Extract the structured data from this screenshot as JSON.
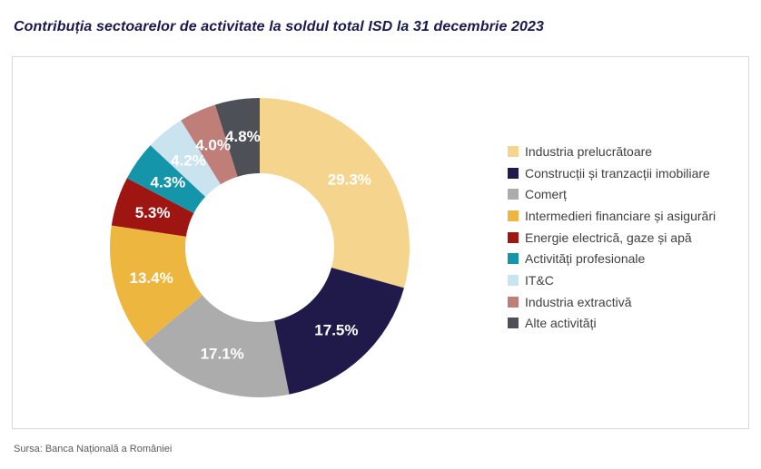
{
  "title": "Contribuția sectoarelor de activitate la soldul total ISD la 31 decembrie 2023",
  "source": "Sursa: Banca Națională a României",
  "chart_data": {
    "type": "pie",
    "donut": true,
    "inner_radius_ratio": 0.5,
    "start_angle": 0,
    "direction": "clockwise",
    "title": "Contribuția sectoarelor de activitate la soldul total ISD la 31 decembrie 2023",
    "legend_position": "right",
    "label_color": "#FFFFFF",
    "categories": [
      "Industria prelucrătoare",
      "Construcții și tranzacții imobiliare",
      "Comerț",
      "Intermedieri financiare și asigurări",
      "Energie electrică, gaze și apă",
      "Activități profesionale",
      "IT&C",
      "Industria extractivă",
      "Alte activități"
    ],
    "values": [
      29.3,
      17.5,
      17.1,
      13.4,
      5.3,
      4.3,
      4.2,
      4.0,
      4.8
    ],
    "labels": [
      "29.3%",
      "17.5%",
      "17.1%",
      "13.4%",
      "5.3%",
      "4.3%",
      "4.2%",
      "4.0%",
      "4.8%"
    ],
    "colors": [
      "#F5D58E",
      "#201A4B",
      "#ACACAC",
      "#EDB63E",
      "#9E1511",
      "#1595AA",
      "#C9E3EF",
      "#BF7E78",
      "#4E5057"
    ]
  }
}
